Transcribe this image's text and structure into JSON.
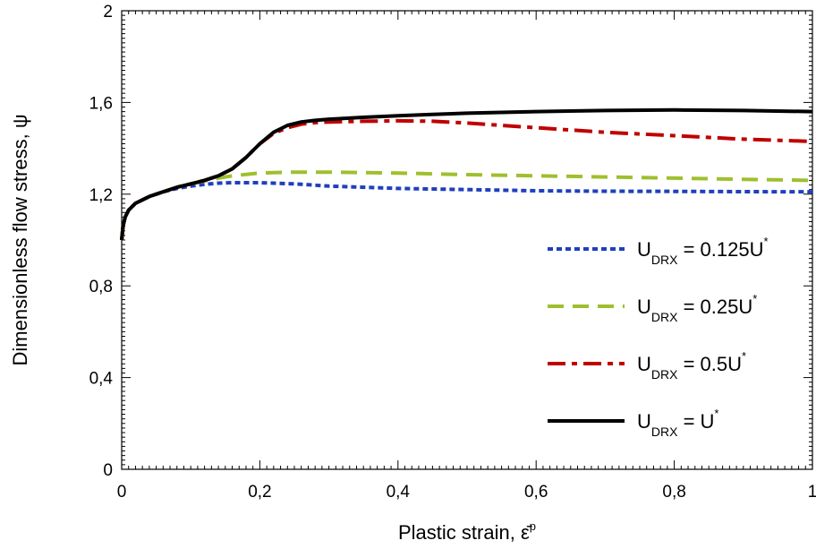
{
  "chart_data": {
    "type": "line",
    "xlabel": "Plastic strain, ",
    "xlabel_symbol": "ε̄",
    "xlabel_sup": "p",
    "ylabel": "Dimensionless flow stress, ψ",
    "xlim": [
      0,
      1
    ],
    "ylim": [
      0,
      2
    ],
    "x_ticks": [
      "0",
      "0,2",
      "0,4",
      "0,6",
      "0,8",
      "1"
    ],
    "y_ticks": [
      "0",
      "0,4",
      "0,8",
      "1,2",
      "1,6",
      "2"
    ],
    "grid": false,
    "legend_position": "right",
    "series": [
      {
        "name": "U_DRX = 0.125U*",
        "label_main": "U",
        "label_sub": "DRX",
        "label_rest": " = 0.125U",
        "label_sup": "*",
        "color": "#1f3fbf",
        "dash": "dotted",
        "x": [
          0,
          0.002,
          0.005,
          0.01,
          0.02,
          0.04,
          0.06,
          0.08,
          0.1,
          0.12,
          0.14,
          0.16,
          0.2,
          0.25,
          0.3,
          0.4,
          0.5,
          0.6,
          0.7,
          0.8,
          0.9,
          1.0
        ],
        "y": [
          1.0,
          1.06,
          1.1,
          1.13,
          1.16,
          1.19,
          1.21,
          1.225,
          1.235,
          1.243,
          1.248,
          1.25,
          1.25,
          1.245,
          1.235,
          1.225,
          1.22,
          1.215,
          1.213,
          1.212,
          1.211,
          1.21
        ]
      },
      {
        "name": "U_DRX = 0.25U*",
        "label_main": "U",
        "label_sub": "DRX",
        "label_rest": " = 0.25U",
        "label_sup": "*",
        "color": "#9fbf2f",
        "dash": "dashed",
        "x": [
          0,
          0.002,
          0.005,
          0.01,
          0.02,
          0.04,
          0.06,
          0.08,
          0.1,
          0.12,
          0.14,
          0.16,
          0.2,
          0.25,
          0.3,
          0.4,
          0.5,
          0.6,
          0.7,
          0.8,
          0.9,
          1.0
        ],
        "y": [
          1.0,
          1.06,
          1.1,
          1.13,
          1.16,
          1.19,
          1.21,
          1.23,
          1.245,
          1.258,
          1.27,
          1.28,
          1.292,
          1.296,
          1.296,
          1.292,
          1.285,
          1.28,
          1.275,
          1.27,
          1.265,
          1.26
        ]
      },
      {
        "name": "U_DRX = 0.5U*",
        "label_main": "U",
        "label_sub": "DRX",
        "label_rest": " = 0.5U",
        "label_sup": "*",
        "color": "#c00000",
        "dash": "dashdot",
        "x": [
          0,
          0.002,
          0.005,
          0.01,
          0.02,
          0.04,
          0.06,
          0.08,
          0.1,
          0.12,
          0.14,
          0.16,
          0.18,
          0.2,
          0.22,
          0.24,
          0.26,
          0.28,
          0.3,
          0.35,
          0.4,
          0.45,
          0.5,
          0.6,
          0.7,
          0.8,
          0.9,
          1.0
        ],
        "y": [
          1.0,
          1.06,
          1.1,
          1.13,
          1.16,
          1.19,
          1.21,
          1.23,
          1.245,
          1.26,
          1.28,
          1.31,
          1.36,
          1.42,
          1.465,
          1.49,
          1.505,
          1.512,
          1.515,
          1.518,
          1.52,
          1.518,
          1.51,
          1.49,
          1.47,
          1.455,
          1.44,
          1.43
        ]
      },
      {
        "name": "U_DRX = U*",
        "label_main": "U",
        "label_sub": "DRX",
        "label_rest": " = U",
        "label_sup": "*",
        "color": "#000000",
        "dash": "solid",
        "x": [
          0,
          0.002,
          0.005,
          0.01,
          0.02,
          0.04,
          0.06,
          0.08,
          0.1,
          0.12,
          0.14,
          0.16,
          0.18,
          0.2,
          0.22,
          0.24,
          0.26,
          0.28,
          0.3,
          0.35,
          0.4,
          0.45,
          0.5,
          0.6,
          0.7,
          0.8,
          0.9,
          1.0
        ],
        "y": [
          1.0,
          1.06,
          1.1,
          1.13,
          1.16,
          1.19,
          1.21,
          1.23,
          1.245,
          1.26,
          1.28,
          1.31,
          1.36,
          1.42,
          1.47,
          1.5,
          1.515,
          1.522,
          1.527,
          1.535,
          1.542,
          1.548,
          1.553,
          1.56,
          1.565,
          1.567,
          1.565,
          1.56
        ]
      }
    ]
  }
}
